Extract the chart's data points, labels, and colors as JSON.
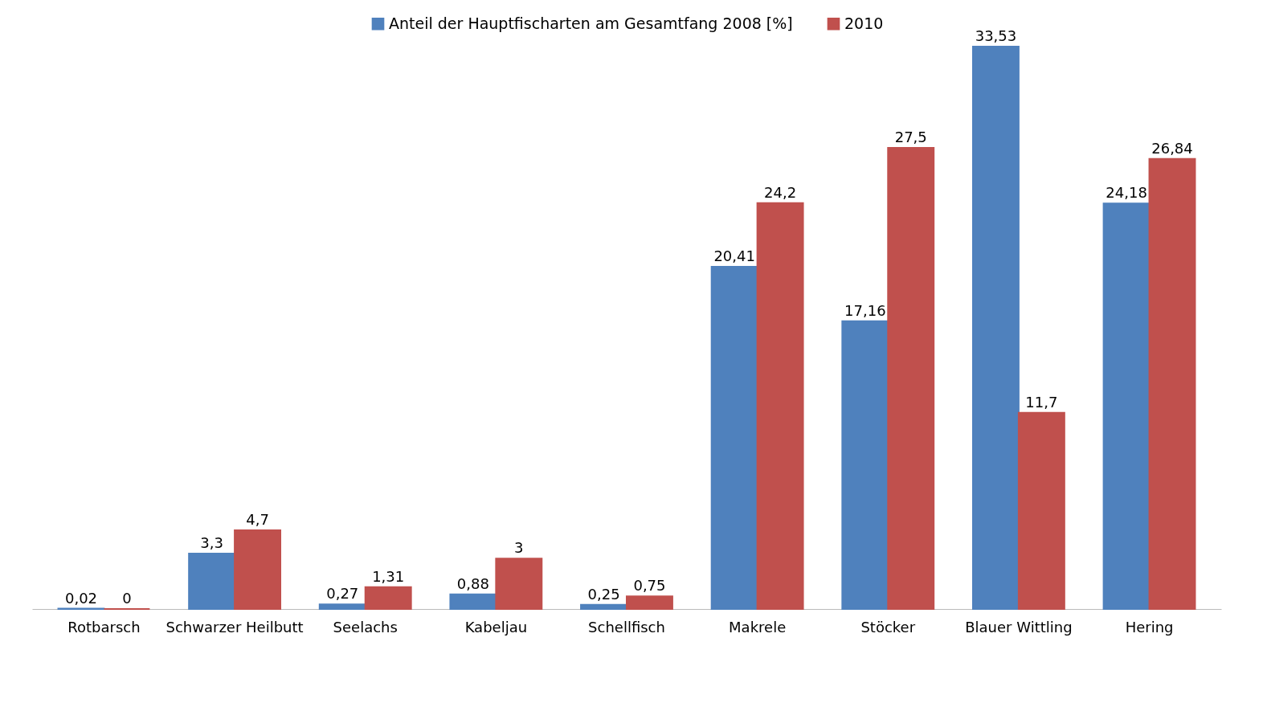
{
  "chart_data": {
    "type": "bar",
    "categories": [
      "Rotbarsch",
      "Schwarzer Heilbutt",
      "Seelachs",
      "Kabeljau",
      "Schellfisch",
      "Makrele",
      "Stöcker",
      "Blauer Wittling",
      "Hering"
    ],
    "series": [
      {
        "name": "Anteil der Hauptfischarten am Gesamtfang 2008 [%]",
        "color": "#4f81bd",
        "values": [
          0.02,
          3.3,
          0.27,
          0.88,
          0.25,
          20.41,
          17.16,
          33.53,
          24.18
        ],
        "value_labels": [
          "0,02",
          "3,3",
          "0,27",
          "0,88",
          "0,25",
          "20,41",
          "17,16",
          "33,53",
          "24,18"
        ]
      },
      {
        "name": "2010",
        "color": "#c0504d",
        "values": [
          0,
          4.7,
          1.31,
          3,
          0.75,
          24.2,
          27.5,
          11.7,
          26.84
        ],
        "value_labels": [
          "0",
          "4,7",
          "1,31",
          "3",
          "0,75",
          "24,2",
          "27,5",
          "11,7",
          "26,84"
        ]
      }
    ],
    "legend": "top",
    "tick_labels": "x"
  }
}
